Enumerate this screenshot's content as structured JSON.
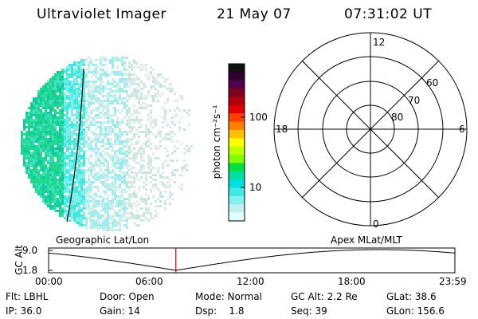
{
  "header": {
    "instrument": "Ultraviolet Imager",
    "date": "21 May 07",
    "time": "07:31:02 UT"
  },
  "colorbar": {
    "unit_label": "photon cm⁻²s⁻¹",
    "ticks": [
      "100",
      "10"
    ],
    "colors": [
      "#101010",
      "#300030",
      "#500050",
      "#800020",
      "#b00010",
      "#e00000",
      "#ff4000",
      "#ff8000",
      "#ffc000",
      "#ffff00",
      "#c0ff00",
      "#80ff00",
      "#00e040",
      "#00e0a0",
      "#00e0e0",
      "#40e8e8",
      "#80f0f0",
      "#c0f0f0",
      "#e0ffff"
    ]
  },
  "polar": {
    "mlt_labels": {
      "top": "12",
      "left": "18",
      "right": "6",
      "bottom": "0"
    },
    "lat_labels": [
      "60",
      "70",
      "80"
    ]
  },
  "timeline": {
    "left_title": "Geographic Lat/Lon",
    "right_title": "Apex MLat/MLT",
    "axis_label": "GC Alt",
    "y_ticks": [
      "9.0",
      "1.8"
    ],
    "x_ticks": [
      "00:00",
      "06:00",
      "12:00",
      "18:00",
      "23:59"
    ],
    "current_time_hours": 7.517,
    "marker_color": "#cc0000"
  },
  "status": {
    "flt": "Flt: LBHL",
    "door": "Door: Open",
    "mode": "Mode: Normal",
    "gc_alt": "GC Alt: 2.2 Re",
    "glat": "GLat:  38.6",
    "ip": "IP: 36.0",
    "gain": "Gain: 14",
    "dsp": "Dsp:    1.8",
    "seq": "Seq: 39",
    "glon": "GLon: 156.6"
  }
}
